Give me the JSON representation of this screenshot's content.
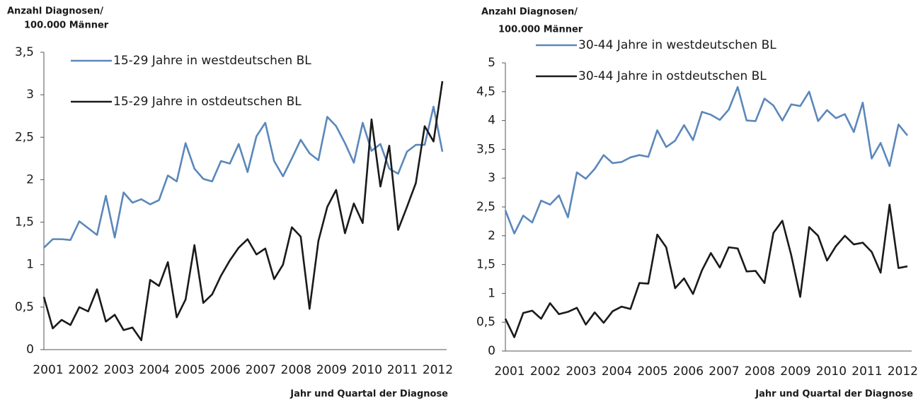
{
  "chart_data": [
    {
      "type": "line",
      "ylabel_lines": [
        "Anzahl Diagnosen/",
        "100.000 Männer"
      ],
      "xlabel": "Jahr und Quartal der Diagnose",
      "categories": [
        "2001",
        null,
        null,
        null,
        "2002",
        null,
        null,
        null,
        "2003",
        null,
        null,
        null,
        "2004",
        null,
        null,
        null,
        "2005",
        null,
        null,
        null,
        "2006",
        null,
        null,
        null,
        "2007",
        null,
        null,
        null,
        "2008",
        null,
        null,
        null,
        "2009",
        null,
        null,
        null,
        "2010",
        null,
        null,
        null,
        "2011",
        null,
        null,
        null,
        "2012",
        null
      ],
      "ylim": [
        0,
        3.5
      ],
      "yticks": [
        0,
        {
          "value": 0.5,
          "label": "0,5"
        },
        1,
        {
          "value": 1.5,
          "label": "1,5"
        },
        2,
        {
          "value": 2.5,
          "label": "2,5"
        },
        3,
        {
          "value": 3.5,
          "label": "3,5"
        }
      ],
      "grid": false,
      "legend": "upper left",
      "series": [
        {
          "name": "15-29 Jahre in westdeutschen BL",
          "color": "#5b87bb",
          "values": [
            1.2,
            1.3,
            1.3,
            1.29,
            1.51,
            1.43,
            1.35,
            1.81,
            1.32,
            1.85,
            1.73,
            1.77,
            1.71,
            1.76,
            2.05,
            1.98,
            2.43,
            2.13,
            2.01,
            1.98,
            2.22,
            2.19,
            2.42,
            2.09,
            2.51,
            2.67,
            2.22,
            2.04,
            2.25,
            2.47,
            2.31,
            2.23,
            2.74,
            2.63,
            2.43,
            2.2,
            2.67,
            2.34,
            2.42,
            2.13,
            2.07,
            2.33,
            2.41,
            2.41,
            2.86,
            2.33
          ]
        },
        {
          "name": "15-29 Jahre in ostdeutschen BL",
          "color": "#1a1a1a",
          "values": [
            0.62,
            0.25,
            0.35,
            0.29,
            0.5,
            0.45,
            0.71,
            0.33,
            0.41,
            0.23,
            0.26,
            0.11,
            0.82,
            0.75,
            1.03,
            0.38,
            0.59,
            1.23,
            0.55,
            0.65,
            0.87,
            1.05,
            1.2,
            1.3,
            1.12,
            1.19,
            0.83,
            1.0,
            1.44,
            1.33,
            0.48,
            1.28,
            1.68,
            1.88,
            1.37,
            1.72,
            1.49,
            2.71,
            1.92,
            2.4,
            1.41,
            1.68,
            1.96,
            2.63,
            2.45,
            3.16
          ]
        }
      ]
    },
    {
      "type": "line",
      "ylabel_lines": [
        "Anzahl Diagnosen/",
        "100.000 Männer"
      ],
      "xlabel": "Jahr und Quartal der Diagnose",
      "categories": [
        "2001",
        null,
        null,
        null,
        "2002",
        null,
        null,
        null,
        "2003",
        null,
        null,
        null,
        "2004",
        null,
        null,
        null,
        "2005",
        null,
        null,
        null,
        "2006",
        null,
        null,
        null,
        "2007",
        null,
        null,
        null,
        "2008",
        null,
        null,
        null,
        "2009",
        null,
        null,
        null,
        "2010",
        null,
        null,
        null,
        "2011",
        null,
        null,
        null,
        "2012",
        null
      ],
      "ylim": [
        0,
        5
      ],
      "yticks": [
        0,
        {
          "value": 0.5,
          "label": "0,5"
        },
        1,
        {
          "value": 1.5,
          "label": "1,5"
        },
        2,
        {
          "value": 2.5,
          "label": "2,5"
        },
        3,
        {
          "value": 3.5,
          "label": "3,5"
        },
        4,
        {
          "value": 4.5,
          "label": "4,5"
        },
        5
      ],
      "grid": false,
      "legend": "upper left",
      "series": [
        {
          "name": "30-44 Jahre in westdeutschen BL",
          "color": "#5b87bb",
          "values": [
            2.44,
            2.04,
            2.35,
            2.23,
            2.61,
            2.54,
            2.7,
            2.32,
            3.1,
            2.99,
            3.16,
            3.4,
            3.26,
            3.28,
            3.36,
            3.4,
            3.37,
            3.83,
            3.54,
            3.65,
            3.92,
            3.66,
            4.15,
            4.1,
            4.01,
            4.19,
            4.58,
            4.0,
            3.99,
            4.38,
            4.26,
            4.0,
            4.28,
            4.25,
            4.5,
            3.99,
            4.18,
            4.04,
            4.11,
            3.8,
            4.31,
            3.34,
            3.61,
            3.21,
            3.93,
            3.74
          ]
        },
        {
          "name": "30-44 Jahre in ostdeutschen BL",
          "color": "#1a1a1a",
          "values": [
            0.56,
            0.24,
            0.66,
            0.7,
            0.56,
            0.83,
            0.64,
            0.68,
            0.75,
            0.46,
            0.67,
            0.49,
            0.69,
            0.77,
            0.73,
            1.18,
            1.17,
            2.02,
            1.8,
            1.09,
            1.26,
            0.99,
            1.4,
            1.7,
            1.45,
            1.8,
            1.78,
            1.38,
            1.39,
            1.18,
            2.05,
            2.26,
            1.66,
            0.94,
            2.15,
            2.0,
            1.57,
            1.82,
            2.0,
            1.85,
            1.88,
            1.72,
            1.36,
            2.54,
            1.44,
            1.47
          ]
        }
      ]
    }
  ]
}
